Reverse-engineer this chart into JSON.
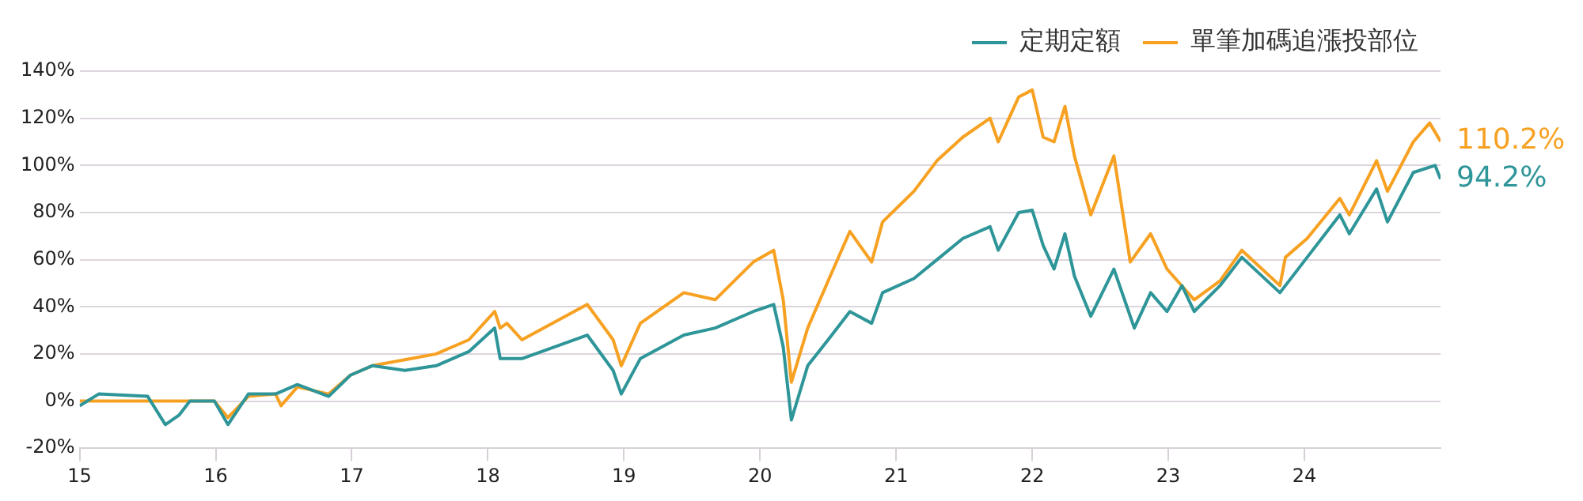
{
  "chart_data": {
    "type": "line",
    "legend": "top right",
    "grid": "y",
    "marker": "none",
    "line_style": "solid",
    "xlim": [
      15,
      25
    ],
    "xticks": [
      15,
      16,
      17,
      18,
      19,
      20,
      21,
      22,
      23,
      24
    ],
    "ylim": [
      -20,
      140
    ],
    "yticks": [
      {
        "value": -20,
        "label": "-20%"
      },
      {
        "value": 0,
        "label": "0%"
      },
      {
        "value": 20,
        "label": "20%"
      },
      {
        "value": 40,
        "label": "40%"
      },
      {
        "value": 60,
        "label": "60%"
      },
      {
        "value": 80,
        "label": "80%"
      },
      {
        "value": 100,
        "label": "100%"
      },
      {
        "value": 120,
        "label": "120%"
      },
      {
        "value": 140,
        "label": "140%"
      }
    ],
    "series": [
      {
        "name": "定期定額",
        "color": "#2e9598",
        "x": [
          15.0,
          15.14,
          15.5,
          15.63,
          15.73,
          15.81,
          15.99,
          16.09,
          16.24,
          16.44,
          16.6,
          16.83,
          16.99,
          17.15,
          17.39,
          17.62,
          17.86,
          18.05,
          18.09,
          18.25,
          18.73,
          18.92,
          18.98,
          19.12,
          19.44,
          19.67,
          19.95,
          20.1,
          20.17,
          20.23,
          20.35,
          20.5,
          20.66,
          20.82,
          20.9,
          21.13,
          21.3,
          21.49,
          21.69,
          21.75,
          21.9,
          22.0,
          22.08,
          22.16,
          22.24,
          22.31,
          22.43,
          22.6,
          22.75,
          22.87,
          22.99,
          23.1,
          23.19,
          23.38,
          23.54,
          23.82,
          24.02,
          24.26,
          24.33,
          24.53,
          24.61,
          24.8,
          24.96,
          25.0
        ],
        "values": [
          -2,
          3,
          2,
          -10,
          -6,
          0,
          0,
          -10,
          3,
          3,
          7,
          2,
          11,
          15,
          13,
          15,
          21,
          31,
          18,
          18,
          28,
          13,
          3,
          18,
          28,
          31,
          38,
          41,
          23,
          -8,
          15,
          26,
          38,
          33,
          46,
          52,
          60,
          69,
          74,
          64,
          80,
          81,
          66,
          56,
          71,
          53,
          36,
          56,
          31,
          46,
          38,
          49,
          38,
          49,
          61,
          46,
          61,
          79,
          71,
          90,
          76,
          97,
          100,
          94.2
        ]
      },
      {
        "name": "單筆加碼追漲投部位",
        "color": "#f7a122",
        "x": [
          15.0,
          15.99,
          16.09,
          16.24,
          16.44,
          16.48,
          16.6,
          16.83,
          16.99,
          17.15,
          17.62,
          17.86,
          18.05,
          18.09,
          18.14,
          18.25,
          18.73,
          18.92,
          18.98,
          19.12,
          19.44,
          19.67,
          19.95,
          20.1,
          20.17,
          20.23,
          20.35,
          20.5,
          20.66,
          20.82,
          20.9,
          21.13,
          21.3,
          21.49,
          21.69,
          21.75,
          21.9,
          22.0,
          22.08,
          22.16,
          22.24,
          22.31,
          22.43,
          22.6,
          22.72,
          22.87,
          22.99,
          23.19,
          23.38,
          23.54,
          23.82,
          23.86,
          24.02,
          24.26,
          24.33,
          24.53,
          24.61,
          24.8,
          24.92,
          25.0
        ],
        "values": [
          0,
          0,
          -7,
          2,
          3,
          -2,
          6,
          3,
          11,
          15,
          20,
          26,
          38,
          31,
          33,
          26,
          41,
          26,
          15,
          33,
          46,
          43,
          59,
          64,
          43,
          8,
          31,
          51,
          72,
          59,
          76,
          89,
          102,
          112,
          120,
          110,
          129,
          132,
          112,
          110,
          125,
          104,
          79,
          104,
          59,
          71,
          56,
          43,
          51,
          64,
          49,
          61,
          69,
          86,
          79,
          102,
          89,
          110,
          118,
          110.2
        ]
      }
    ],
    "annotations": [
      {
        "text": "94.2%",
        "x": 25,
        "y": 94.2
      },
      {
        "text": "110.2%",
        "x": 25,
        "y": 110.2
      }
    ]
  }
}
